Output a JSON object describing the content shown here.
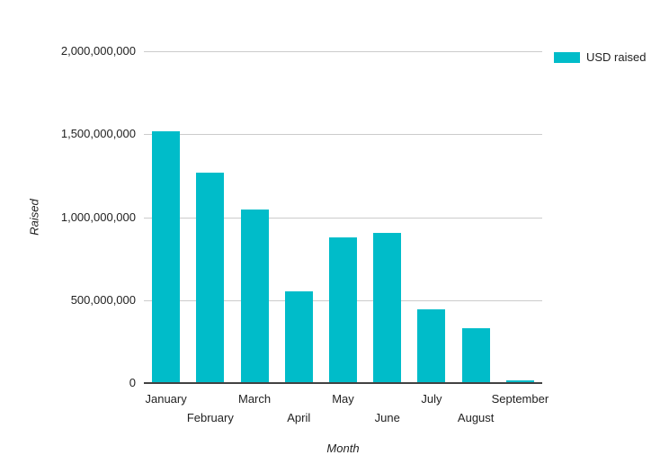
{
  "chart_data": {
    "type": "bar",
    "title": "",
    "categories": [
      "January",
      "February",
      "March",
      "April",
      "May",
      "June",
      "July",
      "August",
      "September"
    ],
    "series": [
      {
        "name": "USD raised",
        "values": [
          1520000000,
          1270000000,
          1045000000,
          555000000,
          880000000,
          905000000,
          445000000,
          330000000,
          15000000
        ]
      }
    ],
    "xlabel": "Month",
    "ylabel": "Raised",
    "ylim": [
      0,
      2000000000
    ],
    "ytick_interval": 500000000,
    "ytick_labels": [
      "0",
      "500,000,000",
      "1,000,000,000",
      "1,500,000,000",
      "2,000,000,000"
    ],
    "grid": true,
    "legend_position": "top-right"
  },
  "legend": {
    "label": "USD raised"
  },
  "colors": {
    "bar": "#00bcc9",
    "gridline": "#cccccc",
    "axis_line": "#424242",
    "text": "#222222",
    "background": "#ffffff"
  }
}
